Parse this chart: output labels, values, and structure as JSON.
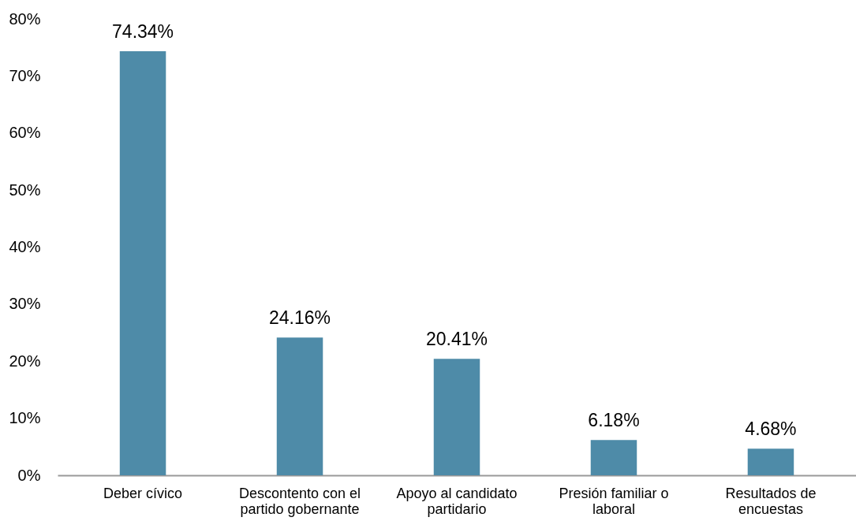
{
  "chart_data": {
    "type": "bar",
    "categories": [
      "Deber cívico",
      "Descontento con el partido gobernante",
      "Apoyo al candidato partidario",
      "Presión familiar o laboral",
      "Resultados de encuestas"
    ],
    "values": [
      74.34,
      24.16,
      20.41,
      6.18,
      4.68
    ],
    "value_labels": [
      "74.34%",
      "24.16%",
      "20.41%",
      "6.18%",
      "4.68%"
    ],
    "color": "#4e8ba8",
    "ylim": [
      0,
      80
    ],
    "yticks": [
      {
        "value": 0,
        "label": "0%"
      },
      {
        "value": 10,
        "label": "10%"
      },
      {
        "value": 20,
        "label": "20%"
      },
      {
        "value": 30,
        "label": "30%"
      },
      {
        "value": 40,
        "label": "40%"
      },
      {
        "value": 50,
        "label": "50%"
      },
      {
        "value": 60,
        "label": "60%"
      },
      {
        "value": 70,
        "label": "70%"
      },
      {
        "value": 80,
        "label": "80%"
      }
    ]
  }
}
